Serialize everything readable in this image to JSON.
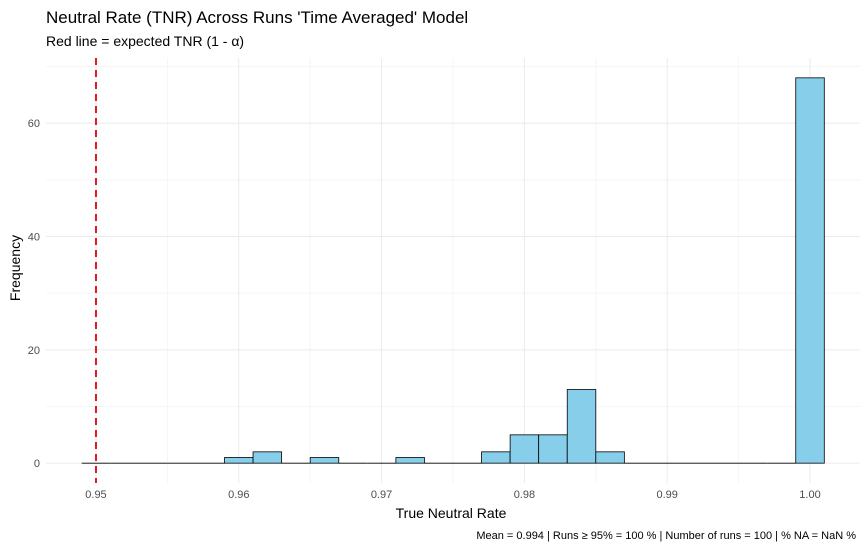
{
  "chart_data": {
    "type": "bar",
    "title": "Neutral Rate (TNR) Across Runs 'Time Averaged' Model",
    "subtitle": "Red line = expected TNR (1 - α)",
    "xlabel": "True Neutral Rate",
    "ylabel": "Frequency",
    "caption": "Mean = 0.994 | Runs ≥ 95% = 100 % | Number of runs = 100 | % NA = NaN %",
    "xlim": [
      0.9465,
      1.0035
    ],
    "ylim": [
      -3.5,
      71.5
    ],
    "x_ticks": [
      0.95,
      0.96,
      0.97,
      0.98,
      0.99,
      1.0
    ],
    "x_tick_labels": [
      "0.95",
      "0.96",
      "0.97",
      "0.98",
      "0.99",
      "1.00"
    ],
    "y_ticks": [
      0,
      20,
      40,
      60
    ],
    "y_tick_labels": [
      "0",
      "20",
      "40",
      "60"
    ],
    "bin_width": 0.002,
    "bins": [
      {
        "x": 0.95,
        "count": 0
      },
      {
        "x": 0.952,
        "count": 0
      },
      {
        "x": 0.954,
        "count": 0
      },
      {
        "x": 0.956,
        "count": 0
      },
      {
        "x": 0.958,
        "count": 0
      },
      {
        "x": 0.96,
        "count": 1
      },
      {
        "x": 0.962,
        "count": 2
      },
      {
        "x": 0.964,
        "count": 0
      },
      {
        "x": 0.966,
        "count": 1
      },
      {
        "x": 0.968,
        "count": 0
      },
      {
        "x": 0.97,
        "count": 0
      },
      {
        "x": 0.972,
        "count": 1
      },
      {
        "x": 0.974,
        "count": 0
      },
      {
        "x": 0.976,
        "count": 0
      },
      {
        "x": 0.978,
        "count": 2
      },
      {
        "x": 0.98,
        "count": 5
      },
      {
        "x": 0.982,
        "count": 5
      },
      {
        "x": 0.984,
        "count": 13
      },
      {
        "x": 0.986,
        "count": 2
      },
      {
        "x": 0.988,
        "count": 0
      },
      {
        "x": 0.99,
        "count": 0
      },
      {
        "x": 0.992,
        "count": 0
      },
      {
        "x": 0.994,
        "count": 0
      },
      {
        "x": 0.996,
        "count": 0
      },
      {
        "x": 0.998,
        "count": 0
      },
      {
        "x": 1.0,
        "count": 68
      }
    ],
    "reference_line": {
      "x": 0.95,
      "color": "#E41A1C",
      "style": "dashed"
    },
    "bar_fill": "#87CEEB",
    "bar_outline": "#000000",
    "grid": true,
    "legend": "none"
  }
}
